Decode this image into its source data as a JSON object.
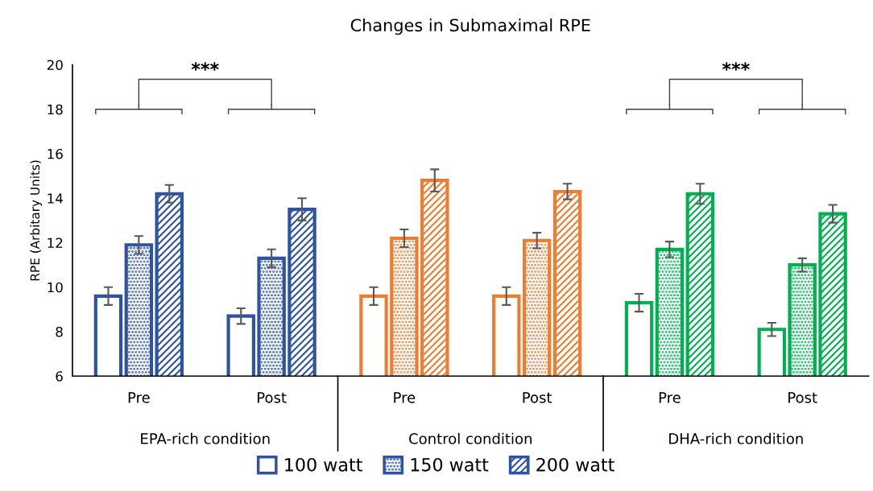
{
  "chart_data": {
    "type": "bar",
    "title": "Changes in Submaximal RPE",
    "ylabel": "RPE (Arbitary Units)",
    "categories": [
      "Pre",
      "Post",
      "Pre",
      "Post",
      "Pre",
      "Post"
    ],
    "series": [
      {
        "name": "100 watt",
        "color": "#2e54a1",
        "colors": [
          "#2e54a1",
          "#2e54a1",
          "#ed7d31",
          "#ed7d31",
          "#00b050",
          "#00b050"
        ],
        "values": [
          9.6,
          8.7,
          9.6,
          9.6,
          9.3,
          8.1
        ],
        "errors": [
          0.4,
          0.35,
          0.4,
          0.4,
          0.4,
          0.3
        ]
      },
      {
        "name": "150 watt",
        "color": "#2e54a1",
        "colors": [
          "#2e54a1",
          "#2e54a1",
          "#ed7d31",
          "#ed7d31",
          "#00b050",
          "#00b050"
        ],
        "values": [
          11.9,
          11.3,
          12.2,
          12.1,
          11.7,
          11.0
        ],
        "errors": [
          0.4,
          0.4,
          0.4,
          0.35,
          0.35,
          0.3
        ]
      },
      {
        "name": "200 watt",
        "color": "#2e54a1",
        "colors": [
          "#2e54a1",
          "#2e54a1",
          "#ed7d31",
          "#ed7d31",
          "#00b050",
          "#00b050"
        ],
        "values": [
          14.2,
          13.5,
          14.8,
          14.3,
          14.2,
          13.3
        ],
        "errors": [
          0.4,
          0.5,
          0.5,
          0.35,
          0.45,
          0.4
        ]
      }
    ],
    "ylim": [
      6,
      20
    ],
    "yticks": [
      6,
      8,
      10,
      12,
      14,
      16,
      18,
      20
    ],
    "grid": false,
    "legend": "bottom",
    "annotations": [
      "***",
      "***",
      "EPA-rich condition",
      "Control condition",
      "DHA-rich condition"
    ]
  }
}
